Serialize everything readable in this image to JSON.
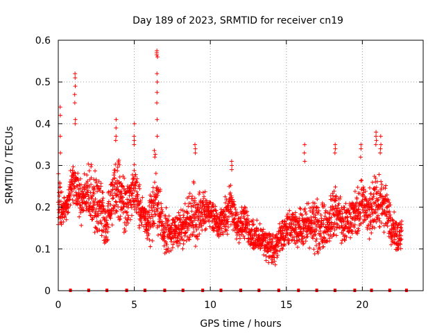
{
  "chart_data": {
    "type": "scatter",
    "title": "Day 189 of 2023, SRMTID for receiver cn19",
    "xlabel": "GPS time / hours",
    "ylabel": "SRMTID / TECUs",
    "xlim": [
      0,
      24
    ],
    "ylim": [
      0,
      0.6
    ],
    "grid": true,
    "marker": "+",
    "color": "#ff0000",
    "x_ticks": [
      "0",
      "5",
      "10",
      "15",
      "20"
    ],
    "y_ticks": [
      "0",
      "0.1",
      "0.2",
      "0.3",
      "0.4",
      "0.5",
      "0.6"
    ],
    "envelope": {
      "t": [
        0.0,
        0.1,
        0.3,
        0.6,
        0.8,
        1.0,
        1.2,
        1.5,
        1.8,
        2.1,
        2.3,
        2.6,
        2.9,
        3.1,
        3.3,
        3.6,
        3.8,
        4.0,
        4.3,
        4.6,
        4.9,
        5.1,
        5.4,
        5.6,
        5.9,
        6.1,
        6.3,
        6.5,
        6.7,
        6.9,
        7.1,
        7.4,
        7.7,
        8.0,
        8.3,
        8.6,
        8.9,
        9.2,
        9.5,
        9.8,
        10.1,
        10.4,
        10.7,
        11.0,
        11.3,
        11.6,
        11.9,
        12.2,
        12.5,
        12.8,
        13.1,
        13.4,
        13.7,
        14.0,
        14.2,
        14.4,
        14.6,
        14.9,
        15.2,
        15.5,
        15.8,
        16.1,
        16.4,
        16.7,
        17.0,
        17.3,
        17.6,
        17.9,
        18.2,
        18.5,
        18.8,
        19.1,
        19.4,
        19.7,
        20.0,
        20.3,
        20.6,
        20.9,
        21.2,
        21.5,
        21.8,
        22.1,
        22.4,
        22.6
      ],
      "low": [
        0.14,
        0.13,
        0.15,
        0.17,
        0.19,
        0.21,
        0.19,
        0.15,
        0.17,
        0.15,
        0.12,
        0.11,
        0.1,
        0.08,
        0.12,
        0.16,
        0.18,
        0.16,
        0.12,
        0.14,
        0.18,
        0.16,
        0.13,
        0.14,
        0.11,
        0.09,
        0.1,
        0.12,
        0.11,
        0.09,
        0.08,
        0.09,
        0.1,
        0.1,
        0.09,
        0.11,
        0.1,
        0.11,
        0.13,
        0.15,
        0.14,
        0.13,
        0.12,
        0.13,
        0.14,
        0.12,
        0.11,
        0.12,
        0.1,
        0.09,
        0.08,
        0.08,
        0.07,
        0.05,
        0.04,
        0.06,
        0.08,
        0.09,
        0.1,
        0.11,
        0.1,
        0.1,
        0.09,
        0.09,
        0.08,
        0.08,
        0.09,
        0.1,
        0.12,
        0.11,
        0.1,
        0.11,
        0.12,
        0.13,
        0.14,
        0.12,
        0.11,
        0.13,
        0.14,
        0.12,
        0.1,
        0.09,
        0.08,
        0.08
      ],
      "high": [
        0.36,
        0.3,
        0.22,
        0.24,
        0.3,
        0.33,
        0.3,
        0.28,
        0.29,
        0.32,
        0.3,
        0.28,
        0.27,
        0.22,
        0.25,
        0.3,
        0.35,
        0.33,
        0.3,
        0.28,
        0.33,
        0.3,
        0.25,
        0.22,
        0.2,
        0.28,
        0.35,
        0.3,
        0.26,
        0.2,
        0.2,
        0.18,
        0.19,
        0.2,
        0.22,
        0.24,
        0.28,
        0.26,
        0.25,
        0.24,
        0.22,
        0.21,
        0.2,
        0.23,
        0.27,
        0.22,
        0.21,
        0.22,
        0.19,
        0.18,
        0.17,
        0.16,
        0.16,
        0.15,
        0.14,
        0.16,
        0.17,
        0.18,
        0.2,
        0.19,
        0.2,
        0.21,
        0.22,
        0.23,
        0.22,
        0.23,
        0.22,
        0.24,
        0.26,
        0.24,
        0.21,
        0.22,
        0.24,
        0.26,
        0.28,
        0.25,
        0.27,
        0.3,
        0.29,
        0.27,
        0.22,
        0.2,
        0.18,
        0.19
      ]
    },
    "spikes": [
      {
        "t": 0.12,
        "values": [
          0.44,
          0.42,
          0.37,
          0.33
        ]
      },
      {
        "t": 1.1,
        "values": [
          0.52,
          0.51,
          0.49,
          0.47,
          0.45,
          0.41,
          0.4
        ]
      },
      {
        "t": 3.8,
        "values": [
          0.41,
          0.39,
          0.37,
          0.36
        ]
      },
      {
        "t": 5.0,
        "values": [
          0.4,
          0.37,
          0.36,
          0.35
        ]
      },
      {
        "t": 6.5,
        "values": [
          0.575,
          0.57,
          0.565,
          0.56,
          0.52,
          0.5,
          0.475,
          0.45,
          0.41,
          0.37
        ]
      },
      {
        "t": 9.0,
        "values": [
          0.35,
          0.34,
          0.33
        ]
      },
      {
        "t": 11.4,
        "values": [
          0.31,
          0.3,
          0.29
        ]
      },
      {
        "t": 16.2,
        "values": [
          0.35,
          0.33,
          0.31
        ]
      },
      {
        "t": 18.2,
        "values": [
          0.35,
          0.34,
          0.33
        ]
      },
      {
        "t": 19.9,
        "values": [
          0.35,
          0.34,
          0.32
        ]
      },
      {
        "t": 20.9,
        "values": [
          0.38,
          0.37,
          0.36,
          0.35
        ]
      },
      {
        "t": 21.2,
        "values": [
          0.37,
          0.35,
          0.34,
          0.33
        ]
      }
    ],
    "gap_markers": [
      0.8,
      2.0,
      3.2,
      4.5,
      5.7,
      7.0,
      8.2,
      9.5,
      10.7,
      12.0,
      13.2,
      14.5,
      15.8,
      17.0,
      18.2,
      19.5,
      20.6,
      21.8,
      22.9
    ]
  }
}
